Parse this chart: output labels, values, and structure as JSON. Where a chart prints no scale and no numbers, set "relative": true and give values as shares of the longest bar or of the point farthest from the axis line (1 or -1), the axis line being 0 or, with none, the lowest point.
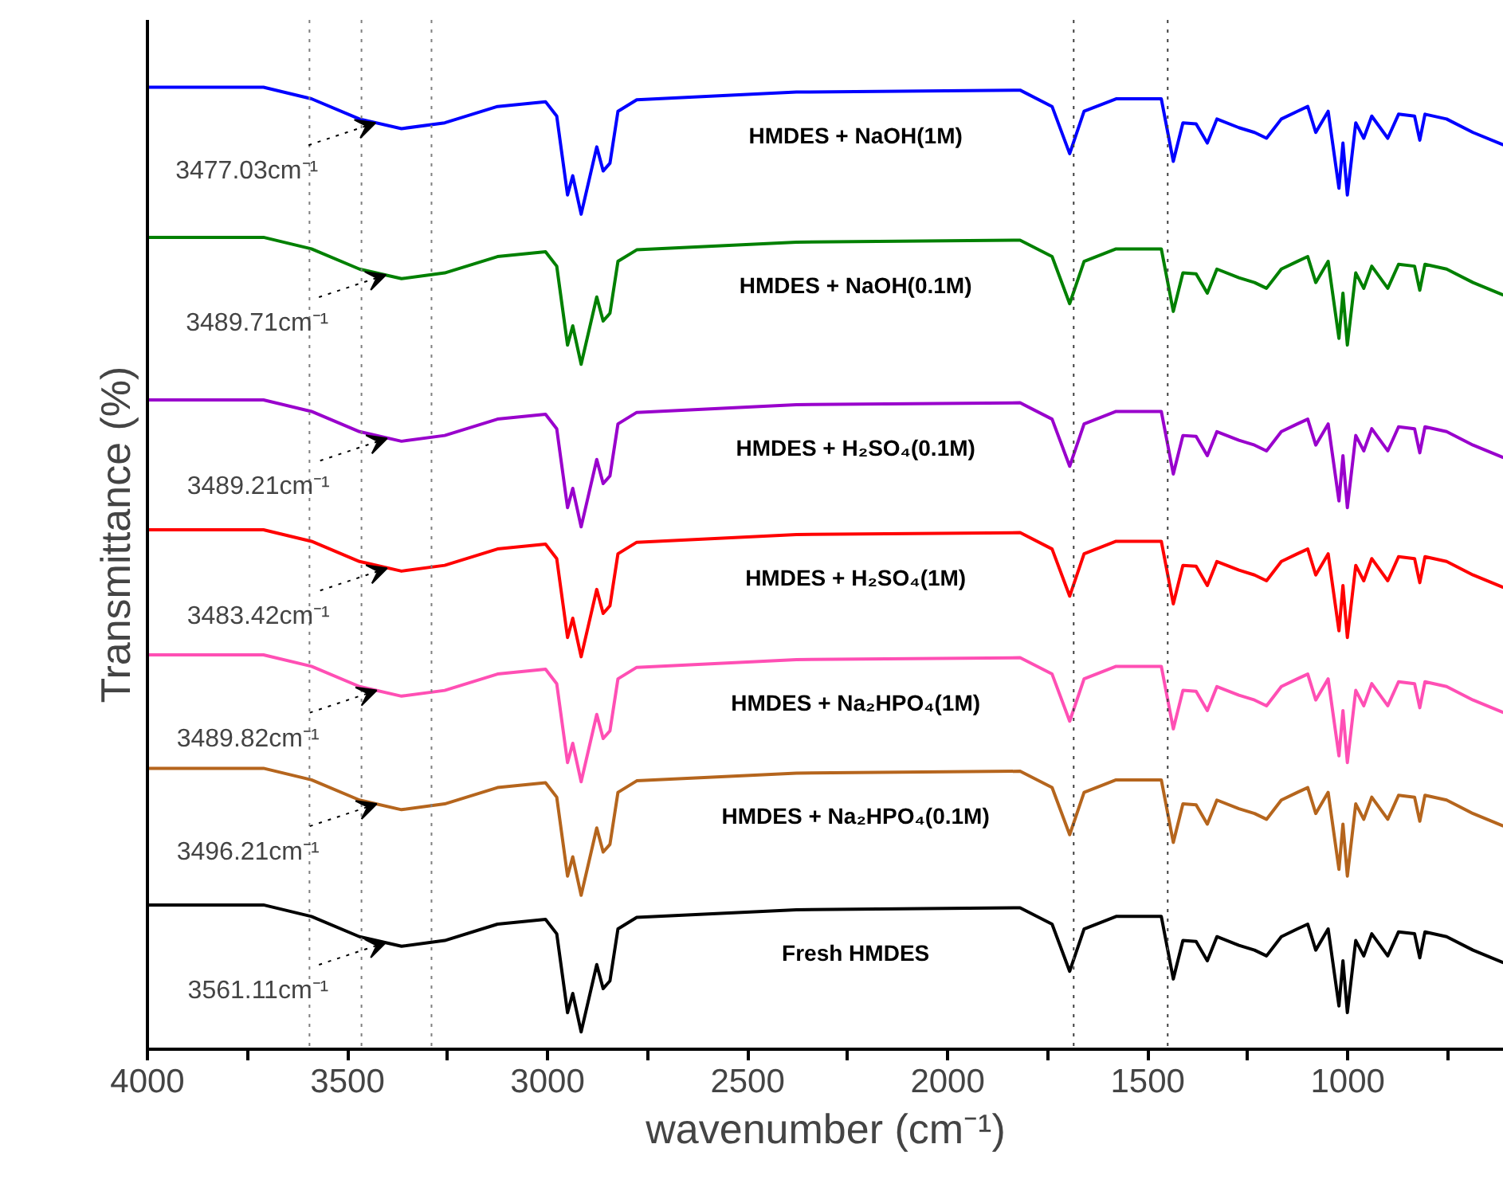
{
  "chart_data": {
    "type": "line",
    "relative": true,
    "xlabel": "wavenumber (cm⁻¹)",
    "ylabel": "Transmittance (%)",
    "xlim": [
      4000,
      610
    ],
    "xticks": [
      4000,
      {
        "value": 3750,
        "label": null
      },
      3500,
      {
        "value": 3250,
        "label": null
      },
      3000,
      {
        "value": 2750,
        "label": null
      },
      2500,
      {
        "value": 2250,
        "label": null
      },
      2000,
      {
        "value": 1750,
        "label": null
      },
      1500,
      {
        "value": 1250,
        "label": null
      },
      1000,
      {
        "value": 750,
        "label": null
      }
    ],
    "tick_labels": "x",
    "grid": false,
    "legend": false,
    "line_style": "solid",
    "marker": "none",
    "x": [
      4000,
      3710,
      3590,
      3470,
      3365,
      3257,
      3125,
      3005,
      2977,
      2950,
      2937,
      2916,
      2877,
      2861,
      2844,
      2824,
      2777,
      2378,
      1819,
      1739,
      1695,
      1659,
      1579,
      1466,
      1436,
      1412,
      1379,
      1351,
      1327,
      1272,
      1233,
      1203,
      1166,
      1126,
      1100,
      1080,
      1049,
      1022,
      1012,
      1001,
      980,
      960,
      940,
      900,
      873,
      833,
      820,
      807,
      753,
      687,
      611
    ],
    "series": [
      {
        "name": "HMDES + NaOH(1M)",
        "color": "#0000ff",
        "values": [
          1,
          1,
          0.988,
          0.967,
          0.957,
          0.963,
          0.98,
          0.985,
          0.97,
          0.888,
          0.908,
          0.868,
          0.938,
          0.913,
          0.921,
          0.975,
          0.987,
          0.995,
          0.997,
          0.98,
          0.931,
          0.975,
          0.988,
          0.988,
          0.923,
          0.963,
          0.962,
          0.942,
          0.967,
          0.958,
          0.953,
          0.947,
          0.967,
          0.975,
          0.98,
          0.953,
          0.975,
          0.895,
          0.942,
          0.888,
          0.963,
          0.947,
          0.97,
          0.947,
          0.972,
          0.97,
          0.945,
          0.972,
          0.967,
          0.953,
          0.94
        ]
      },
      {
        "name": "HMDES + NaOH(0.1M)",
        "color": "#008000",
        "values": [
          0.844,
          0.844,
          0.832,
          0.811,
          0.801,
          0.807,
          0.824,
          0.829,
          0.814,
          0.732,
          0.752,
          0.712,
          0.782,
          0.757,
          0.765,
          0.819,
          0.831,
          0.839,
          0.841,
          0.824,
          0.775,
          0.819,
          0.832,
          0.832,
          0.767,
          0.807,
          0.806,
          0.786,
          0.811,
          0.802,
          0.797,
          0.791,
          0.811,
          0.819,
          0.824,
          0.797,
          0.819,
          0.739,
          0.786,
          0.732,
          0.807,
          0.791,
          0.814,
          0.791,
          0.816,
          0.814,
          0.789,
          0.816,
          0.811,
          0.797,
          0.784
        ]
      },
      {
        "name": "HMDES + H₂SO₄(0.1M)",
        "color": "#9900cc",
        "values": [
          0.675,
          0.675,
          0.663,
          0.642,
          0.632,
          0.638,
          0.655,
          0.66,
          0.645,
          0.563,
          0.583,
          0.543,
          0.613,
          0.588,
          0.596,
          0.65,
          0.662,
          0.67,
          0.672,
          0.655,
          0.606,
          0.65,
          0.663,
          0.663,
          0.598,
          0.638,
          0.637,
          0.617,
          0.642,
          0.633,
          0.628,
          0.622,
          0.642,
          0.65,
          0.655,
          0.628,
          0.65,
          0.57,
          0.617,
          0.563,
          0.638,
          0.622,
          0.645,
          0.622,
          0.647,
          0.645,
          0.62,
          0.647,
          0.642,
          0.628,
          0.615
        ]
      },
      {
        "name": "HMDES + H₂SO₄(1M)",
        "color": "#ff0000",
        "values": [
          0.54,
          0.54,
          0.528,
          0.507,
          0.497,
          0.503,
          0.52,
          0.525,
          0.51,
          0.428,
          0.448,
          0.408,
          0.478,
          0.453,
          0.461,
          0.515,
          0.527,
          0.535,
          0.537,
          0.52,
          0.471,
          0.515,
          0.528,
          0.528,
          0.463,
          0.503,
          0.502,
          0.482,
          0.507,
          0.498,
          0.493,
          0.487,
          0.507,
          0.515,
          0.52,
          0.493,
          0.515,
          0.435,
          0.482,
          0.428,
          0.503,
          0.487,
          0.51,
          0.487,
          0.512,
          0.51,
          0.485,
          0.512,
          0.507,
          0.493,
          0.48
        ]
      },
      {
        "name": "HMDES + Na₂HPO₄(1M)",
        "color": "#ff4fb4",
        "values": [
          0.41,
          0.41,
          0.398,
          0.377,
          0.367,
          0.373,
          0.39,
          0.395,
          0.38,
          0.298,
          0.318,
          0.278,
          0.348,
          0.323,
          0.331,
          0.385,
          0.397,
          0.405,
          0.407,
          0.39,
          0.341,
          0.385,
          0.398,
          0.398,
          0.333,
          0.373,
          0.372,
          0.352,
          0.377,
          0.368,
          0.363,
          0.357,
          0.377,
          0.385,
          0.39,
          0.363,
          0.385,
          0.305,
          0.352,
          0.298,
          0.373,
          0.357,
          0.38,
          0.357,
          0.382,
          0.38,
          0.355,
          0.382,
          0.377,
          0.363,
          0.35
        ]
      },
      {
        "name": "HMDES + Na₂HPO₄(0.1M)",
        "color": "#b5651d",
        "values": [
          0.292,
          0.292,
          0.28,
          0.259,
          0.249,
          0.255,
          0.272,
          0.277,
          0.262,
          0.18,
          0.2,
          0.16,
          0.23,
          0.205,
          0.213,
          0.267,
          0.279,
          0.287,
          0.289,
          0.272,
          0.223,
          0.267,
          0.28,
          0.28,
          0.215,
          0.255,
          0.254,
          0.234,
          0.259,
          0.25,
          0.245,
          0.239,
          0.259,
          0.267,
          0.272,
          0.245,
          0.267,
          0.187,
          0.234,
          0.18,
          0.255,
          0.239,
          0.262,
          0.239,
          0.264,
          0.262,
          0.237,
          0.264,
          0.259,
          0.245,
          0.232
        ]
      },
      {
        "name": "Fresh HMDES",
        "color": "#000000",
        "values": [
          0.15,
          0.15,
          0.138,
          0.117,
          0.107,
          0.113,
          0.13,
          0.135,
          0.12,
          0.038,
          0.058,
          0.018,
          0.088,
          0.063,
          0.071,
          0.125,
          0.137,
          0.145,
          0.147,
          0.13,
          0.081,
          0.125,
          0.138,
          0.138,
          0.073,
          0.113,
          0.112,
          0.092,
          0.117,
          0.108,
          0.103,
          0.097,
          0.117,
          0.125,
          0.13,
          0.103,
          0.125,
          0.045,
          0.092,
          0.038,
          0.113,
          0.097,
          0.12,
          0.097,
          0.122,
          0.12,
          0.095,
          0.122,
          0.117,
          0.103,
          0.09
        ]
      }
    ],
    "ref_lines": [
      {
        "axis": "x",
        "value": 3595,
        "color": "#808080",
        "line_style": "dotted"
      },
      {
        "axis": "x",
        "value": 3465,
        "color": "#808080",
        "line_style": "dotted"
      },
      {
        "axis": "x",
        "value": 3290,
        "color": "#808080",
        "line_style": "dotted"
      },
      {
        "axis": "x",
        "value": 1685,
        "color": "#404040",
        "line_style": "dotted"
      },
      {
        "axis": "x",
        "value": 1450,
        "color": "#404040",
        "line_style": "dotted"
      }
    ],
    "annotations": [
      {
        "text": "3477.03cm⁻¹",
        "x": 3430,
        "y": 0.963
      },
      {
        "text": "3489.71cm⁻¹",
        "x": 3404,
        "y": 0.805
      },
      {
        "text": "3489.21cm⁻¹",
        "x": 3401,
        "y": 0.635
      },
      {
        "text": "3483.42cm⁻¹",
        "x": 3401,
        "y": 0.5
      },
      {
        "text": "3489.82cm⁻¹",
        "x": 3427,
        "y": 0.373
      },
      {
        "text": "3496.21cm⁻¹",
        "x": 3427,
        "y": 0.255
      },
      {
        "text": "3561.11cm⁻¹",
        "x": 3404,
        "y": 0.111
      }
    ]
  }
}
